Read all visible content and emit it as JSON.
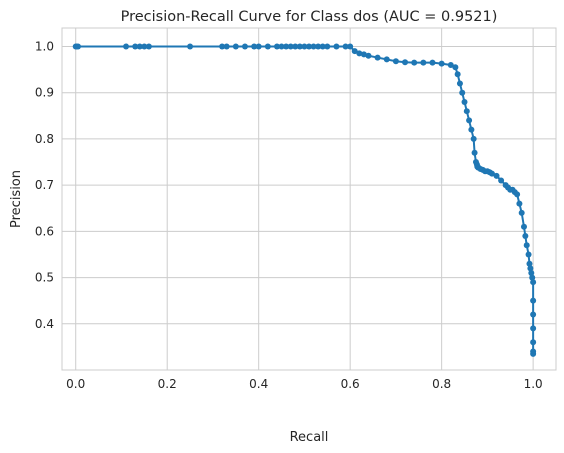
{
  "chart_data": {
    "type": "line",
    "title": "Precision-Recall Curve for Class dos (AUC = 0.9521)",
    "xlabel": "Recall",
    "ylabel": "Precision",
    "xlim": [
      -0.03,
      1.05
    ],
    "ylim": [
      0.3,
      1.04
    ],
    "xticks": [
      "0.0",
      "0.2",
      "0.4",
      "0.6",
      "0.8",
      "1.0"
    ],
    "yticks": [
      "0.4",
      "0.5",
      "0.6",
      "0.7",
      "0.8",
      "0.9",
      "1.0"
    ],
    "grid": true,
    "line_color": "#1f77b4",
    "marker": "circle",
    "series": [
      {
        "x": [
          0.0,
          0.002,
          0.005,
          0.11,
          0.13,
          0.14,
          0.15,
          0.16,
          0.25,
          0.32,
          0.33,
          0.35,
          0.37,
          0.39,
          0.4,
          0.42,
          0.44,
          0.45,
          0.46,
          0.47,
          0.48,
          0.49,
          0.5,
          0.51,
          0.52,
          0.53,
          0.54,
          0.55,
          0.57,
          0.59,
          0.6,
          0.61,
          0.62,
          0.63,
          0.64,
          0.66,
          0.68,
          0.7,
          0.72,
          0.74,
          0.76,
          0.78,
          0.8,
          0.82,
          0.83,
          0.835,
          0.84,
          0.845,
          0.85,
          0.855,
          0.86,
          0.865,
          0.87,
          0.872,
          0.875,
          0.877,
          0.878,
          0.879,
          0.88,
          0.885,
          0.89,
          0.895,
          0.9,
          0.905,
          0.91,
          0.92,
          0.93,
          0.94,
          0.945,
          0.95,
          0.955,
          0.96,
          0.965,
          0.97,
          0.975,
          0.98,
          0.983,
          0.986,
          0.99,
          0.992,
          0.994,
          0.996,
          0.998,
          1.0,
          1.0,
          1.0,
          1.0,
          1.0,
          1.0,
          1.0
        ],
        "y": [
          1.0,
          1.0,
          1.0,
          1.0,
          1.0,
          1.0,
          1.0,
          1.0,
          1.0,
          1.0,
          1.0,
          1.0,
          1.0,
          1.0,
          1.0,
          1.0,
          1.0,
          1.0,
          1.0,
          1.0,
          1.0,
          1.0,
          1.0,
          1.0,
          1.0,
          1.0,
          1.0,
          1.0,
          1.0,
          1.0,
          1.0,
          0.99,
          0.985,
          0.983,
          0.98,
          0.976,
          0.972,
          0.968,
          0.966,
          0.965,
          0.965,
          0.965,
          0.963,
          0.96,
          0.955,
          0.94,
          0.92,
          0.9,
          0.88,
          0.86,
          0.84,
          0.82,
          0.8,
          0.77,
          0.75,
          0.745,
          0.74,
          0.74,
          0.738,
          0.735,
          0.733,
          0.73,
          0.73,
          0.728,
          0.725,
          0.72,
          0.71,
          0.7,
          0.695,
          0.69,
          0.69,
          0.685,
          0.68,
          0.66,
          0.64,
          0.61,
          0.59,
          0.57,
          0.55,
          0.53,
          0.52,
          0.51,
          0.5,
          0.49,
          0.45,
          0.42,
          0.39,
          0.36,
          0.34,
          0.335
        ]
      }
    ]
  }
}
